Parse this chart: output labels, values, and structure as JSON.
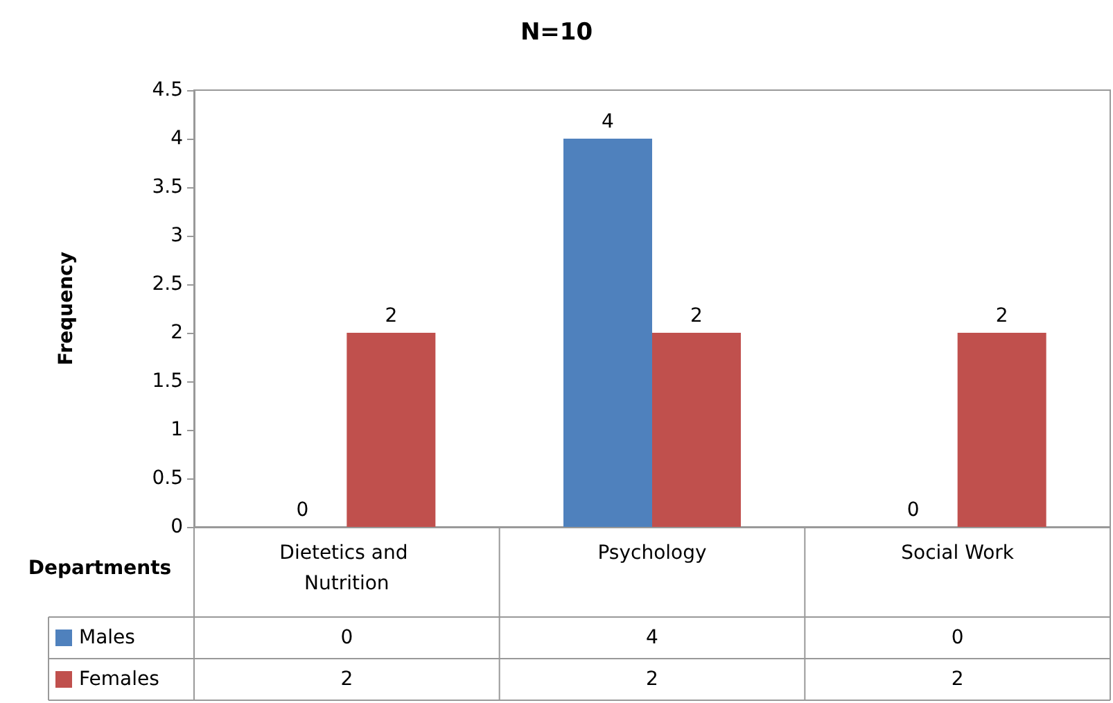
{
  "chart_data": {
    "type": "bar",
    "title": "N=10",
    "xlabel": "Departments",
    "ylabel": "Frequency",
    "categories": [
      "Dietetics and Nutrition",
      "Psychology",
      "Social Work"
    ],
    "series": [
      {
        "name": "Males",
        "color": "#4f81bd",
        "values": [
          0,
          4,
          0
        ],
        "value_labels": [
          "0",
          "4",
          "0"
        ]
      },
      {
        "name": "Females",
        "color": "#c0504d",
        "values": [
          2,
          2,
          2
        ],
        "value_labels": [
          "2",
          "2",
          "2"
        ]
      }
    ],
    "ylim": [
      0,
      4.5
    ],
    "yticks": [
      0,
      0.5,
      1,
      1.5,
      2,
      2.5,
      3,
      3.5,
      4,
      4.5
    ],
    "grid": false,
    "legend": "bottom left",
    "data_labels": true
  }
}
